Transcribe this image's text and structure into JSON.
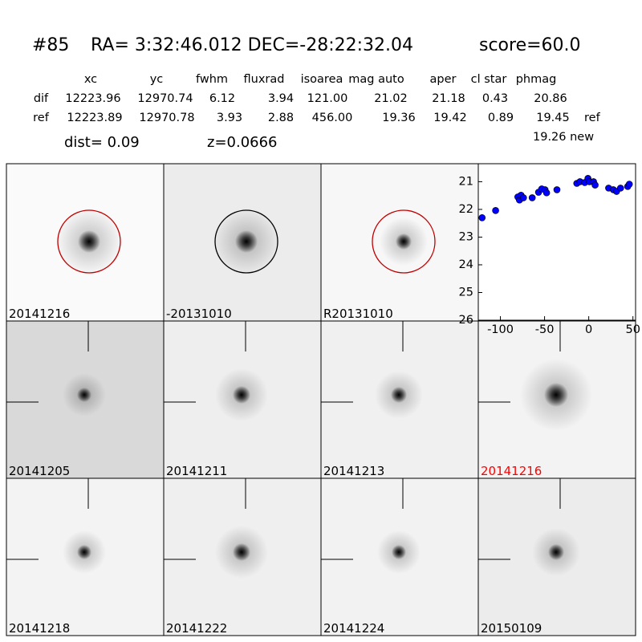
{
  "header": {
    "id": "#85",
    "coords": "RA= 3:32:46.012 DEC=-28:22:32.04",
    "score": "score=60.0"
  },
  "table": {
    "columns": [
      "xc",
      "yc",
      "fwhm",
      "fluxrad",
      "isoarea",
      "mag auto",
      "aper",
      "cl star",
      "phmag"
    ],
    "rows": [
      [
        "dif",
        "12223.96",
        "12970.74",
        "6.12",
        "3.94",
        "121.00",
        "21.02",
        "21.18",
        "0.43",
        "20.86"
      ],
      [
        "ref",
        "12223.89",
        "12970.78",
        "3.93",
        "2.88",
        "456.00",
        "19.36",
        "19.42",
        "0.89",
        "19.45"
      ]
    ],
    "ref_note": "ref",
    "new_phmag": "19.26 new",
    "dist": "dist=  0.09",
    "z": "z=0.0666"
  },
  "panels": [
    "20141216",
    "-20131010",
    "R20131010",
    "20141205",
    "20141211",
    "20141213",
    "20141216",
    "20141218",
    "20141222",
    "20141224",
    "20150109"
  ],
  "chart_data": {
    "type": "scatter",
    "color": "#0000ff",
    "x": [
      -120.7,
      -105.4,
      -80.2,
      -78.4,
      -76.6,
      -73.9,
      -64.0,
      -56.8,
      -53.2,
      -49.5,
      -47.7,
      -36.0,
      -13.5,
      -9.9,
      -4.5,
      -0.9,
      0.9,
      5.4,
      7.2,
      22.5,
      27.9,
      31.5,
      36.0,
      44.1,
      45.9
    ],
    "values": [
      22.3,
      22.04,
      21.55,
      21.66,
      21.49,
      21.58,
      21.58,
      21.38,
      21.26,
      21.29,
      21.4,
      21.29,
      21.06,
      21.0,
      21.03,
      20.88,
      21.0,
      21.0,
      21.12,
      21.23,
      21.29,
      21.35,
      21.23,
      21.17,
      21.09
    ],
    "xlim": [
      -125,
      53
    ],
    "ylim": [
      20.35,
      26
    ],
    "y_inverted": true,
    "xticks": [
      -100,
      -50,
      0,
      50
    ],
    "yticks": [
      21,
      22,
      23,
      24,
      25,
      26
    ]
  }
}
